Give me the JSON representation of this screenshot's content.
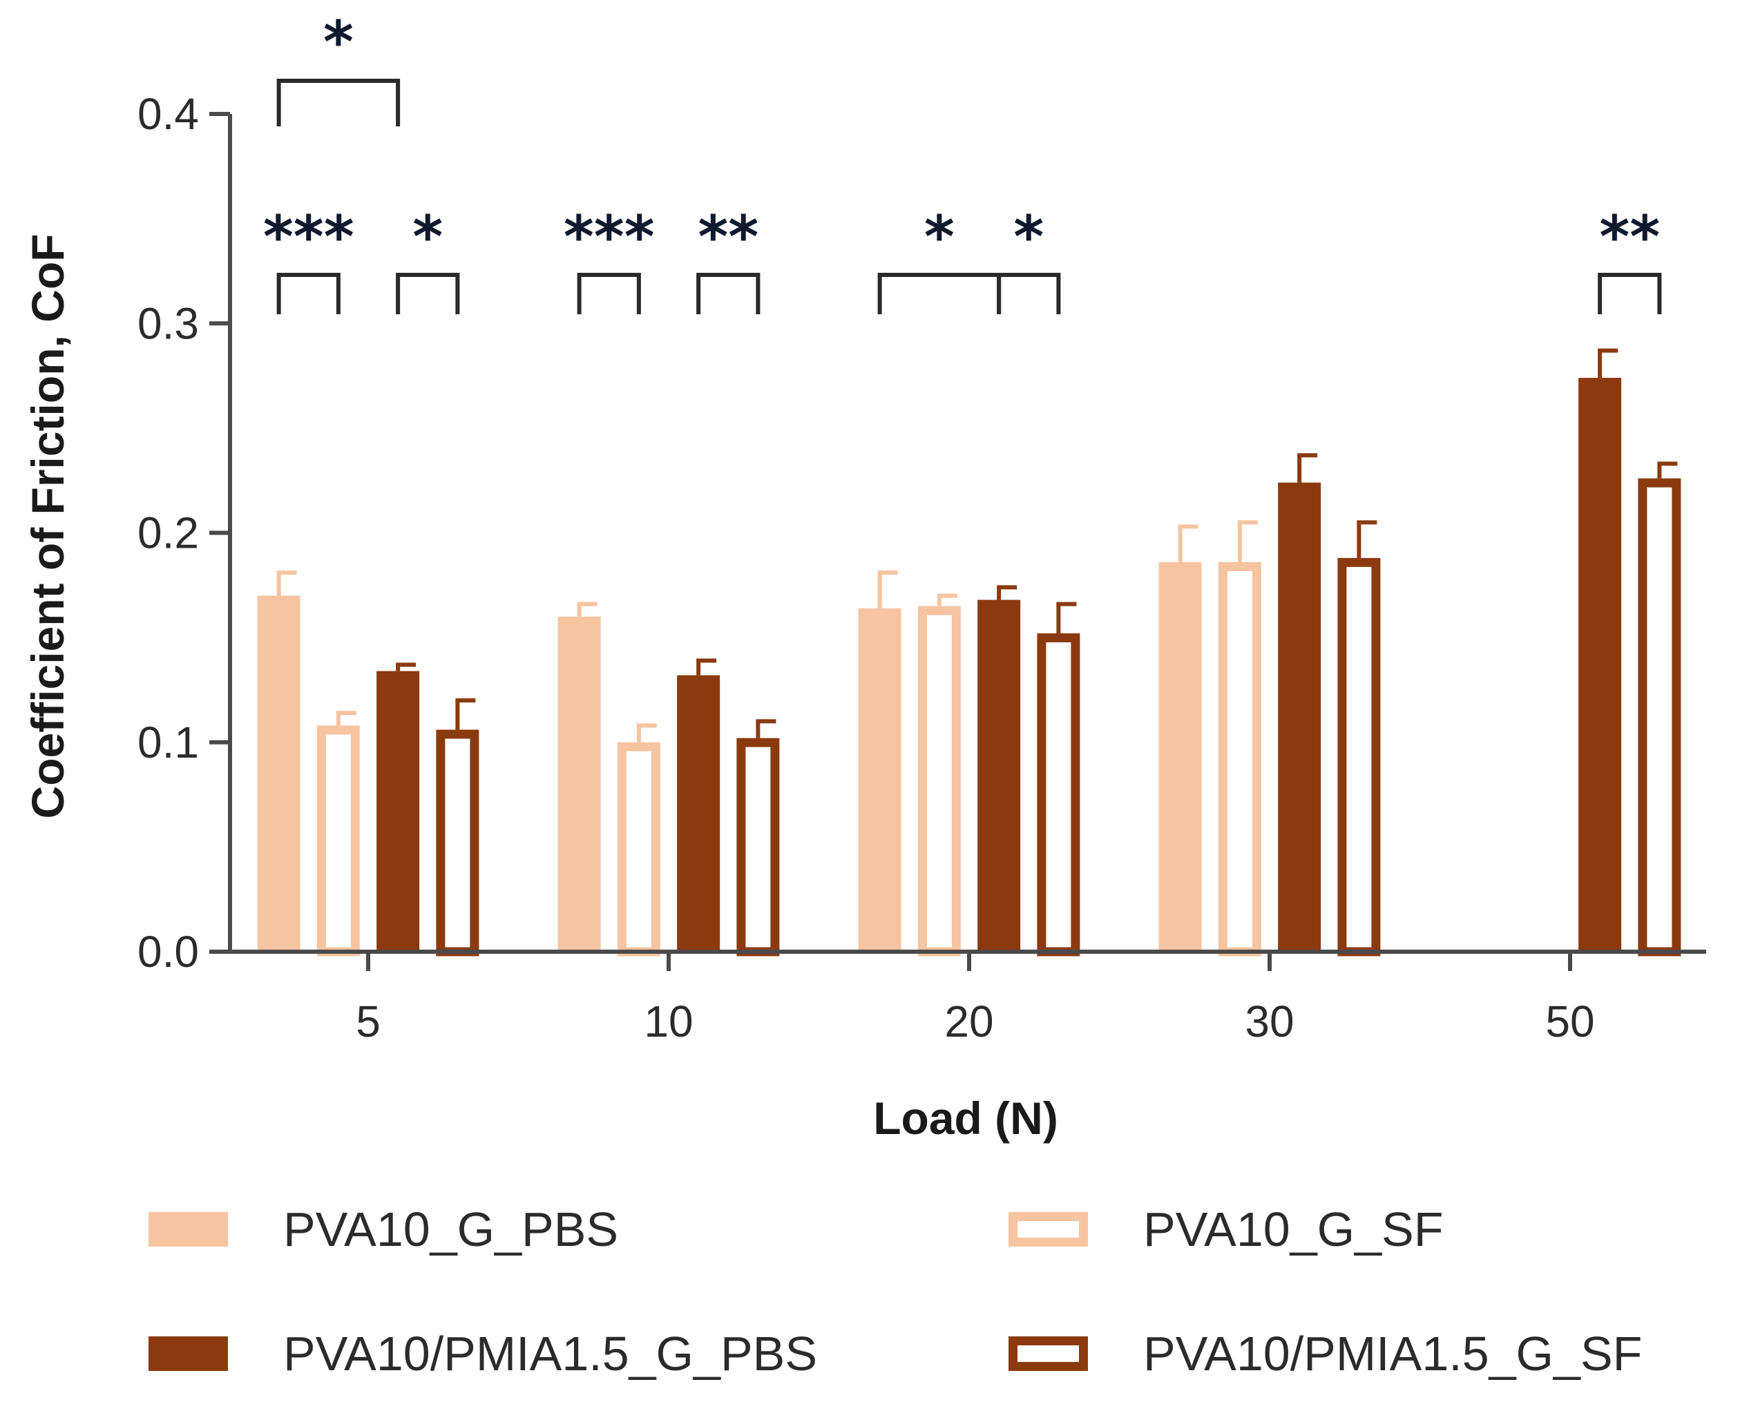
{
  "chart_data": {
    "type": "bar",
    "title": "",
    "xlabel": "Load (N)",
    "ylabel": "Coefficient of Friction, CoF",
    "ylim": [
      0,
      0.4
    ],
    "yticks": [
      "0.0",
      "0.1",
      "0.2",
      "0.3",
      "0.4"
    ],
    "categories": [
      "5",
      "10",
      "20",
      "30",
      "50"
    ],
    "series": [
      {
        "name": "PVA10_G_PBS",
        "color": "#f6c4a0",
        "style": "solid",
        "values": [
          0.17,
          0.16,
          0.164,
          0.186,
          null
        ],
        "errors": [
          0.011,
          0.006,
          0.017,
          0.017,
          null
        ]
      },
      {
        "name": "PVA10_G_SF",
        "color": "#f6c4a0",
        "style": "hollow",
        "values": [
          0.108,
          0.1,
          0.165,
          0.186,
          null
        ],
        "errors": [
          0.006,
          0.008,
          0.005,
          0.019,
          null
        ]
      },
      {
        "name": "PVA10/PMIA1.5_G_PBS",
        "color": "#8b3a0f",
        "style": "solid",
        "values": [
          0.134,
          0.132,
          0.168,
          0.224,
          0.274
        ],
        "errors": [
          0.003,
          0.007,
          0.006,
          0.013,
          0.013
        ]
      },
      {
        "name": "PVA10/PMIA1.5_G_SF",
        "color": "#8b3a0f",
        "style": "hollow",
        "values": [
          0.106,
          0.102,
          0.152,
          0.188,
          0.226
        ],
        "errors": [
          0.014,
          0.008,
          0.014,
          0.017,
          0.007
        ]
      }
    ],
    "significance": [
      {
        "category": 0,
        "from": 0,
        "to": 1,
        "label": "***"
      },
      {
        "category": 0,
        "from": 2,
        "to": 3,
        "label": "*"
      },
      {
        "category": 0,
        "from": 0,
        "to": 2,
        "label": "*",
        "tier": 2
      },
      {
        "category": 1,
        "from": 0,
        "to": 1,
        "label": "***"
      },
      {
        "category": 1,
        "from": 2,
        "to": 3,
        "label": "**"
      },
      {
        "category": 2,
        "from": 0,
        "to": 2,
        "label": "*"
      },
      {
        "category": 2,
        "from": 2,
        "to": 3,
        "label": "*"
      },
      {
        "category": 4,
        "from": 2,
        "to": 3,
        "label": "**"
      }
    ]
  }
}
